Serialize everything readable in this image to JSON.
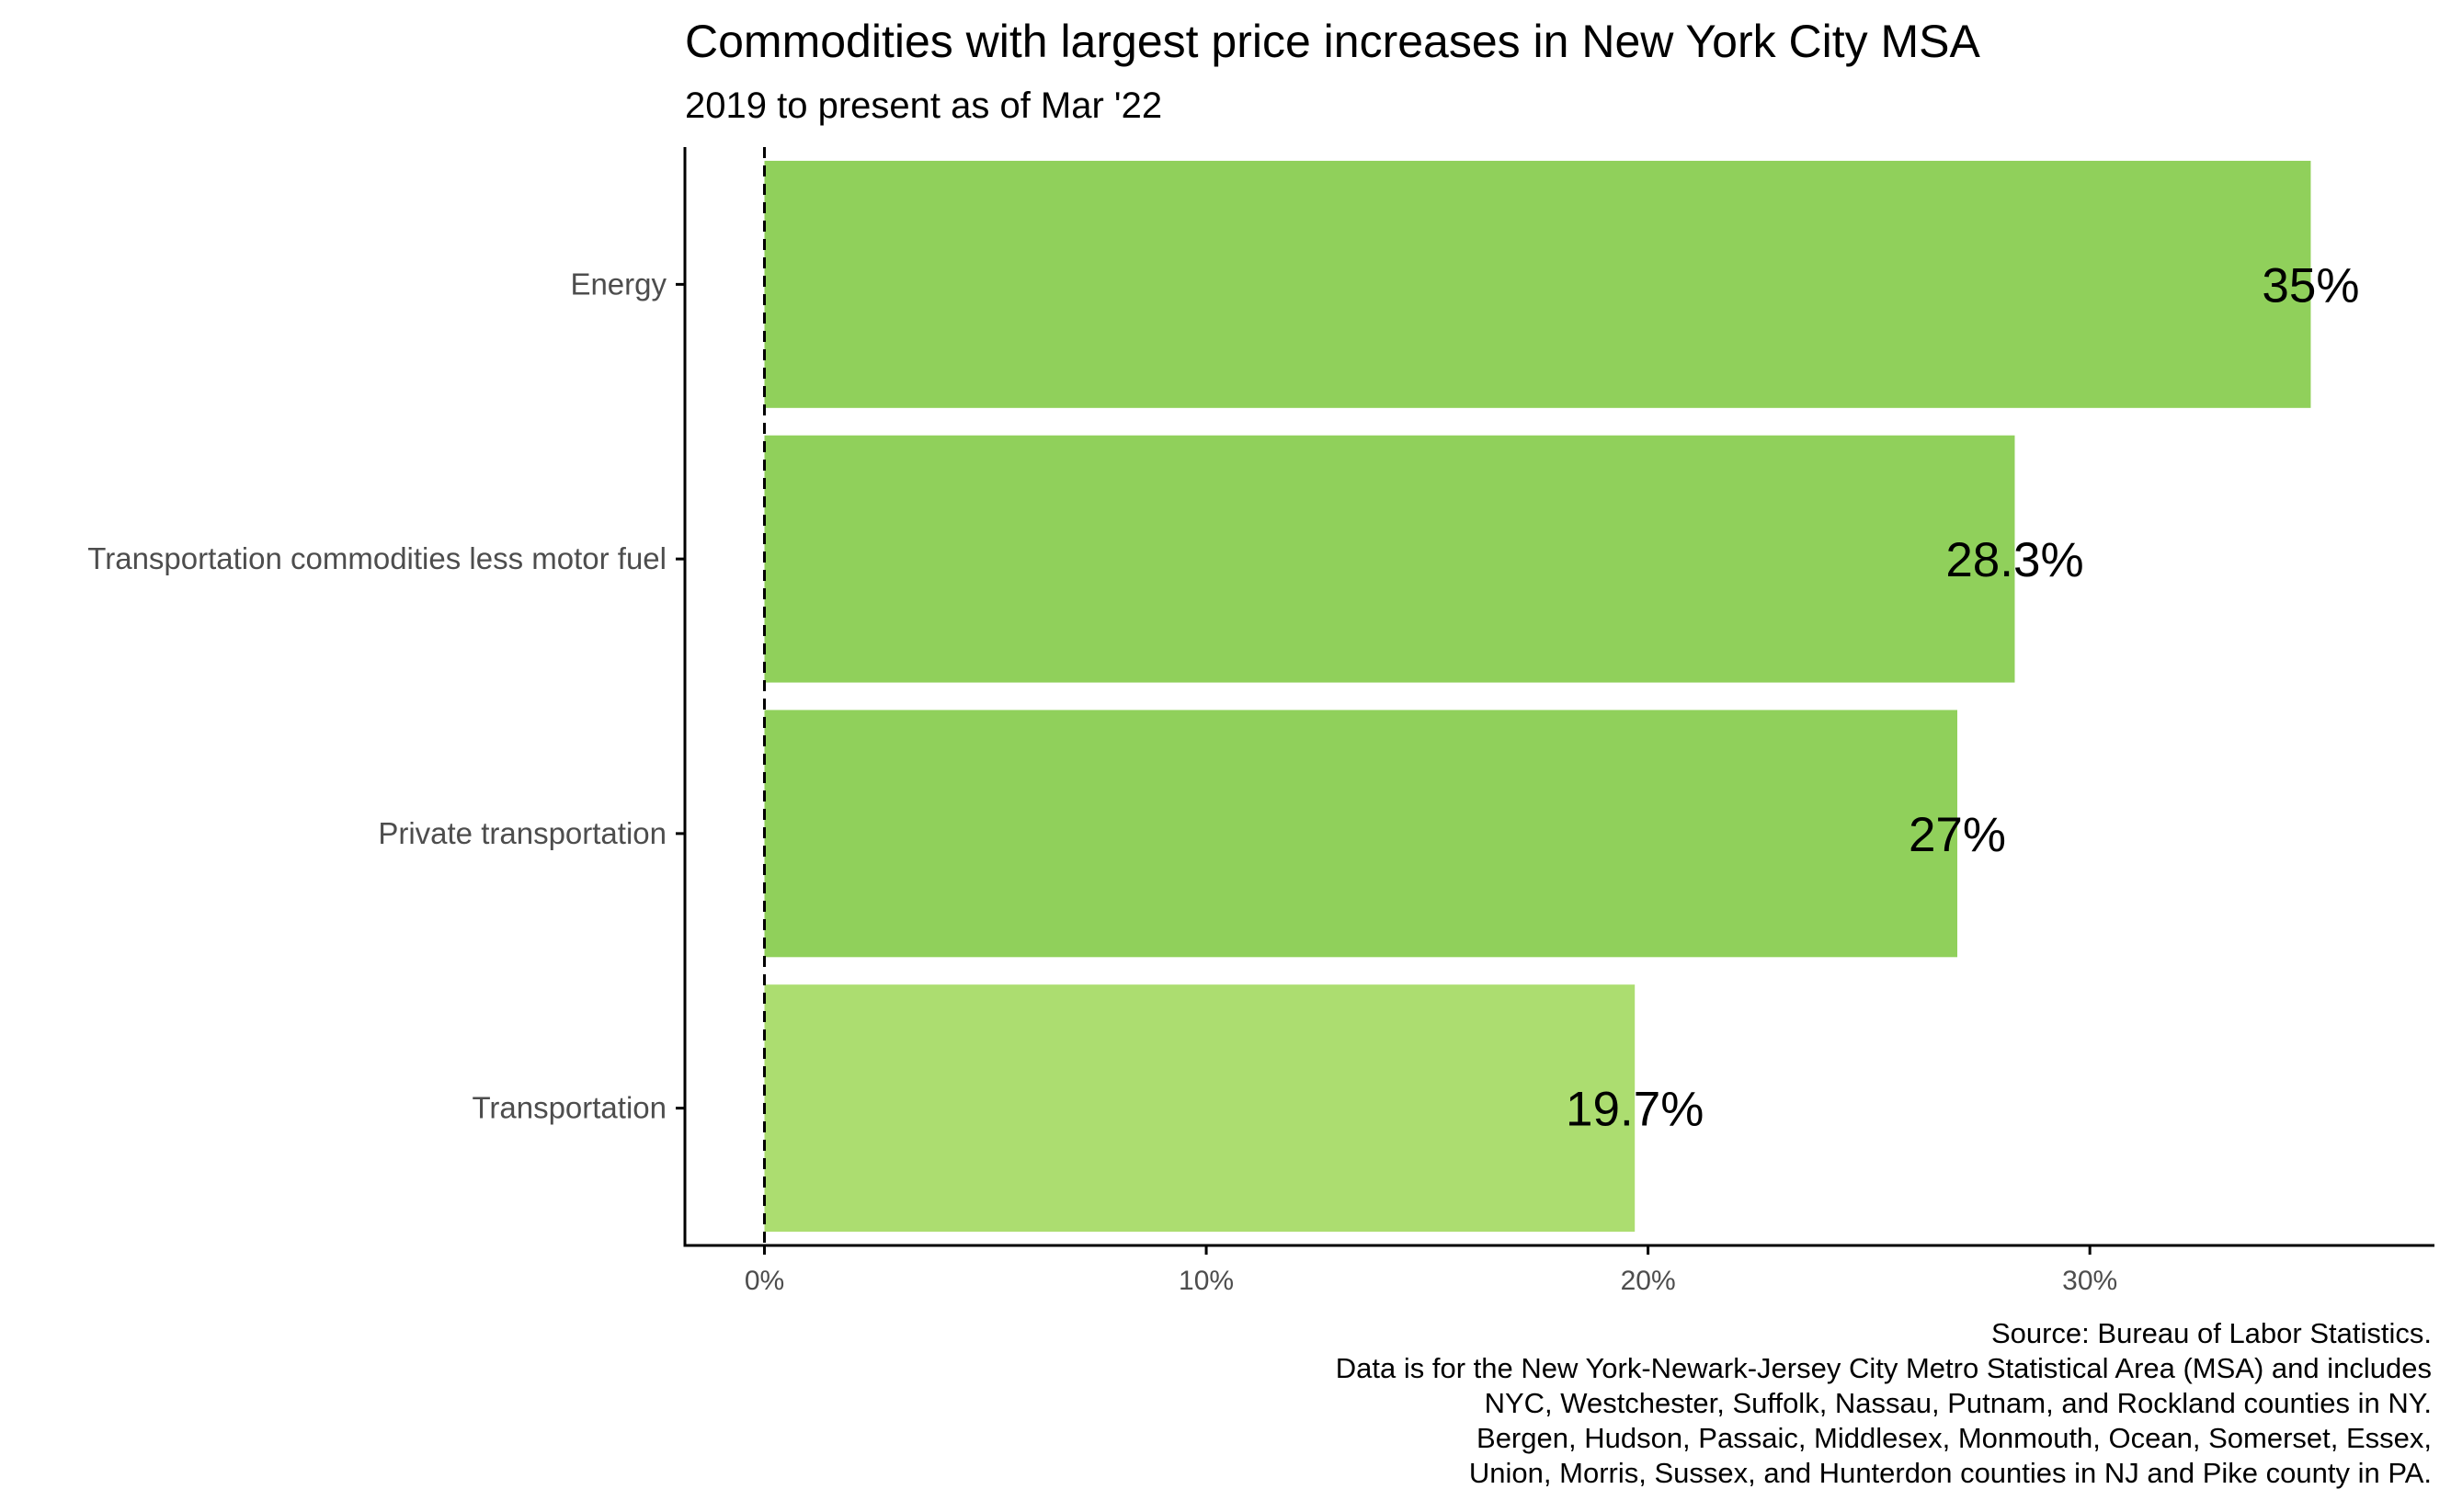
{
  "chart_data": {
    "type": "bar",
    "orientation": "horizontal",
    "title": "Commodities with largest price increases in New York City MSA",
    "subtitle": "2019 to present as of Mar '22",
    "categories": [
      "Energy",
      "Transportation commodities less motor fuel",
      "Private transportation",
      "Transportation"
    ],
    "values": [
      35.0,
      28.3,
      27.0,
      19.7
    ],
    "value_labels": [
      "35%",
      "28.3%",
      "27%",
      "19.7%"
    ],
    "bar_colors": [
      "#90d05b",
      "#90d05b",
      "#90d05b",
      "#acdd70"
    ],
    "xlabel": "",
    "ylabel": "",
    "xlim": [
      -1.8,
      37.8
    ],
    "x_ticks": [
      0,
      10,
      20,
      30
    ],
    "x_tick_labels": [
      "0%",
      "10%",
      "20%",
      "30%"
    ],
    "reference_line": {
      "x": 0,
      "style": "dashed"
    },
    "grid": false,
    "legend": "none"
  },
  "caption": [
    "Source: Bureau of Labor Statistics.",
    "Data is for the New York-Newark-Jersey City Metro Statistical Area (MSA) and includes",
    "NYC, Westchester, Suffolk, Nassau, Putnam, and Rockland counties in NY.",
    "Bergen, Hudson, Passaic, Middlesex, Monmouth, Ocean, Somerset, Essex,",
    "Union, Morris, Sussex, and Hunterdon counties in NJ and Pike county in PA."
  ],
  "colors": {
    "axis": "#000000",
    "tick_label": "#4d4d4d",
    "background": "#ffffff"
  }
}
